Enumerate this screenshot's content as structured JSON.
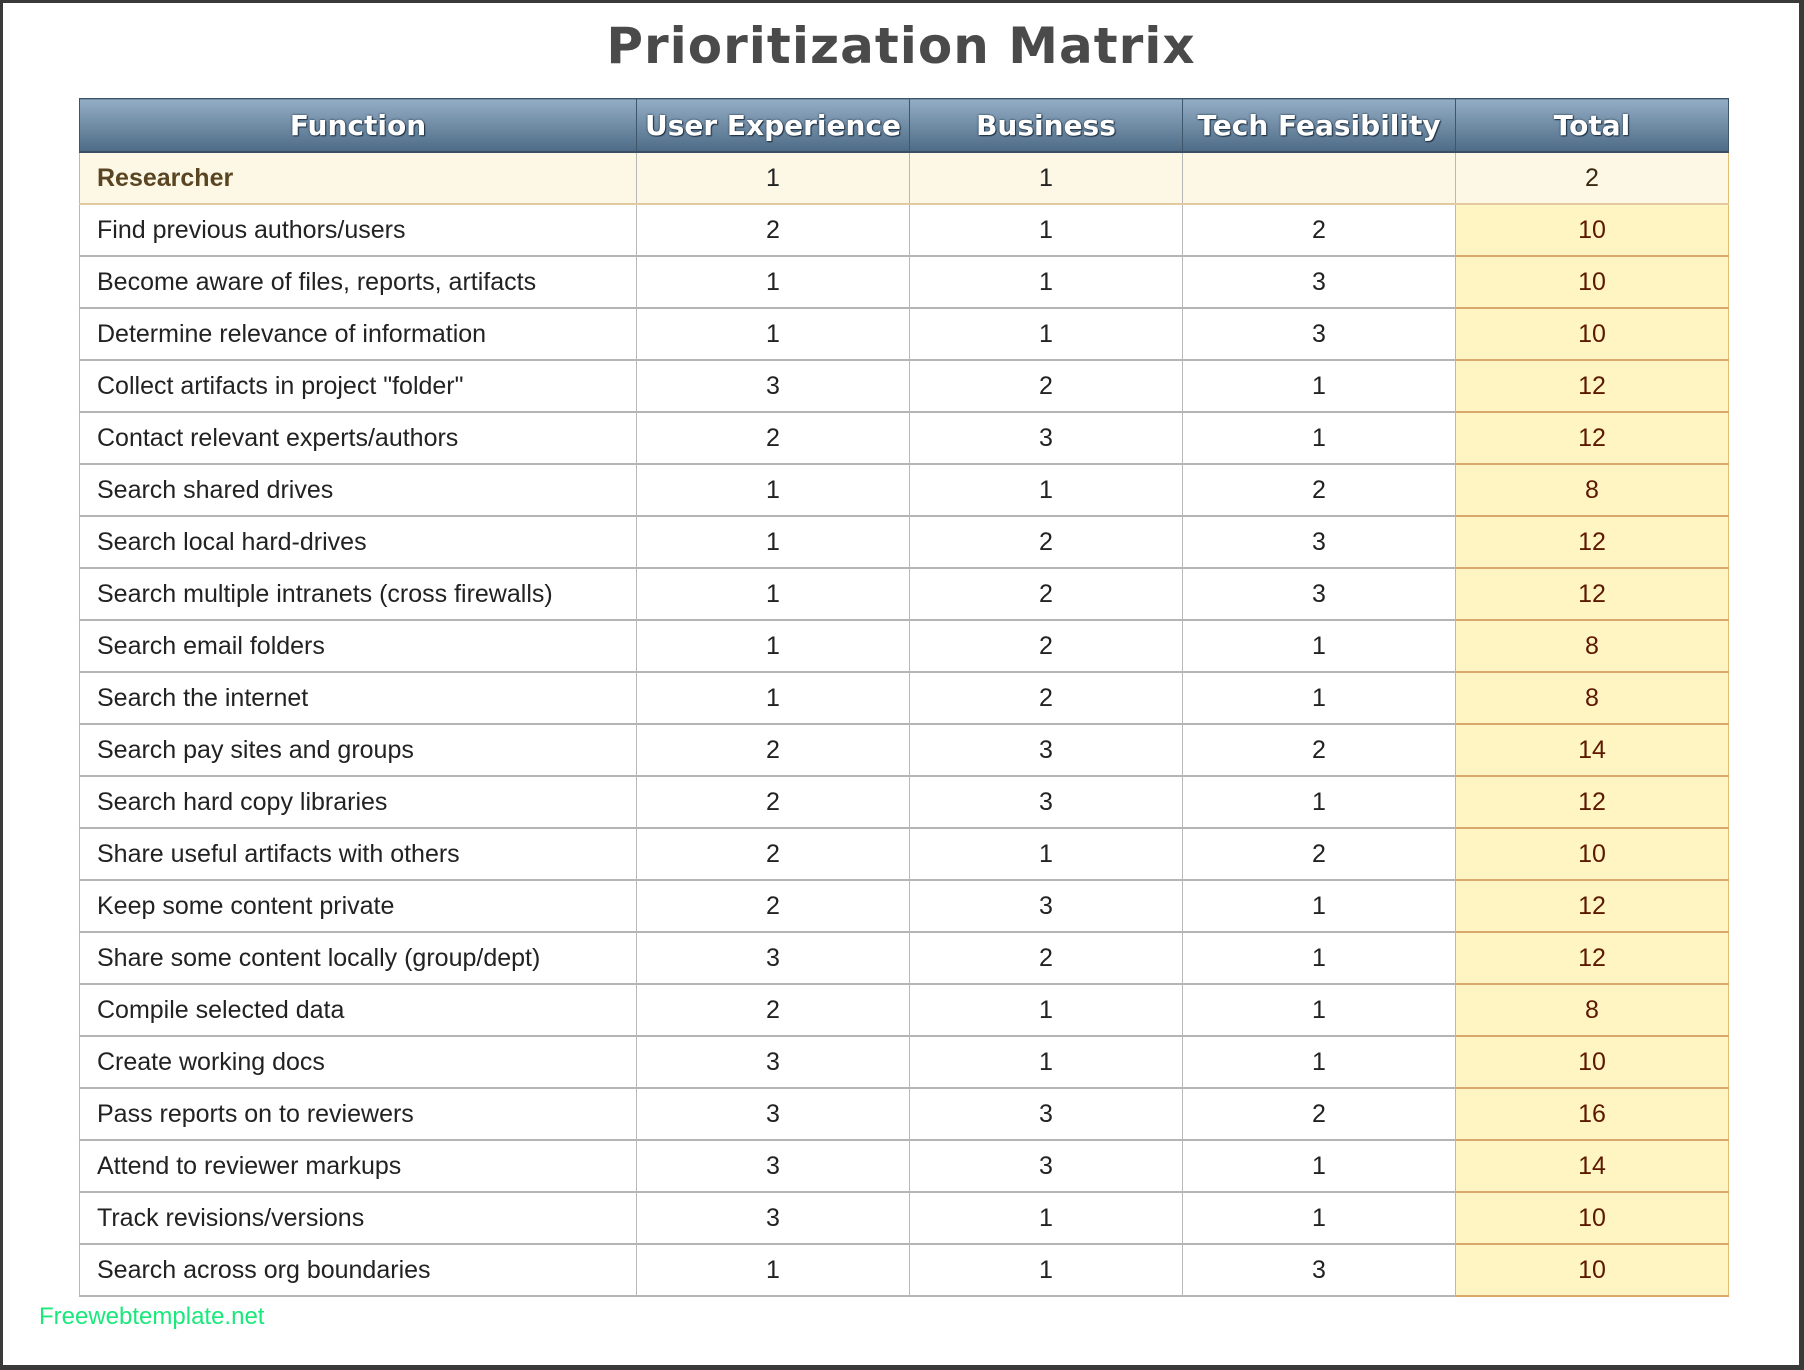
{
  "title": "Prioritization Matrix",
  "columns": [
    "Function",
    "User Experience",
    "Business",
    "Tech Feasibility",
    "Total"
  ],
  "group": {
    "function": "Researcher",
    "ux": "1",
    "business": "1",
    "tech": "",
    "total": "2"
  },
  "rows": [
    {
      "function": "Find previous authors/users",
      "ux": "2",
      "business": "1",
      "tech": "2",
      "total": "10"
    },
    {
      "function": "Become aware of files, reports, artifacts",
      "ux": "1",
      "business": "1",
      "tech": "3",
      "total": "10"
    },
    {
      "function": "Determine relevance of information",
      "ux": "1",
      "business": "1",
      "tech": "3",
      "total": "10"
    },
    {
      "function": "Collect artifacts in project \"folder\"",
      "ux": "3",
      "business": "2",
      "tech": "1",
      "total": "12"
    },
    {
      "function": "Contact relevant experts/authors",
      "ux": "2",
      "business": "3",
      "tech": "1",
      "total": "12"
    },
    {
      "function": "Search shared drives",
      "ux": "1",
      "business": "1",
      "tech": "2",
      "total": "8"
    },
    {
      "function": "Search local hard-drives",
      "ux": "1",
      "business": "2",
      "tech": "3",
      "total": "12"
    },
    {
      "function": "Search multiple intranets (cross firewalls)",
      "ux": "1",
      "business": "2",
      "tech": "3",
      "total": "12"
    },
    {
      "function": "Search email folders",
      "ux": "1",
      "business": "2",
      "tech": "1",
      "total": "8"
    },
    {
      "function": "Search the internet",
      "ux": "1",
      "business": "2",
      "tech": "1",
      "total": "8"
    },
    {
      "function": "Search pay sites and groups",
      "ux": "2",
      "business": "3",
      "tech": "2",
      "total": "14"
    },
    {
      "function": "Search hard copy libraries",
      "ux": "2",
      "business": "3",
      "tech": "1",
      "total": "12"
    },
    {
      "function": "Share useful artifacts with others",
      "ux": "2",
      "business": "1",
      "tech": "2",
      "total": "10"
    },
    {
      "function": "Keep some content private",
      "ux": "2",
      "business": "3",
      "tech": "1",
      "total": "12"
    },
    {
      "function": "Share some content locally (group/dept)",
      "ux": "3",
      "business": "2",
      "tech": "1",
      "total": "12"
    },
    {
      "function": "Compile selected data",
      "ux": "2",
      "business": "1",
      "tech": "1",
      "total": "8"
    },
    {
      "function": "Create working docs",
      "ux": "3",
      "business": "1",
      "tech": "1",
      "total": "10"
    },
    {
      "function": "Pass reports on to reviewers",
      "ux": "3",
      "business": "3",
      "tech": "2",
      "total": "16"
    },
    {
      "function": "Attend to reviewer markups",
      "ux": "3",
      "business": "3",
      "tech": "1",
      "total": "14"
    },
    {
      "function": "Track revisions/versions",
      "ux": "3",
      "business": "1",
      "tech": "1",
      "total": "10"
    },
    {
      "function": "Search across org boundaries",
      "ux": "1",
      "business": "1",
      "tech": "3",
      "total": "10"
    }
  ],
  "watermark": "Freewebtemplate.net",
  "colors": {
    "header": "#5f7d98",
    "total_fill": "#fff5c2",
    "group_fill": "#fdf8e6",
    "total_text": "#5c1800"
  }
}
